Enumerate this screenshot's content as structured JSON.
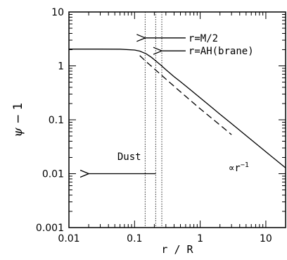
{
  "chart_data": {
    "type": "line",
    "title": "",
    "xlabel": "r / R",
    "ylabel_symbol": "ψ",
    "ylabel_rest": " − 1",
    "xscale": "log",
    "yscale": "log",
    "xlim": [
      0.01,
      20
    ],
    "ylim": [
      0.001,
      10
    ],
    "xticks": [
      0.01,
      0.1,
      1,
      10
    ],
    "xtick_labels": [
      "0.01",
      "0.1",
      "1",
      "10"
    ],
    "yticks": [
      0.001,
      0.01,
      0.1,
      1,
      10
    ],
    "ytick_labels": [
      "0.001",
      "0.01",
      "0.1",
      "1",
      "10"
    ],
    "series": [
      {
        "style": "solid",
        "x": [
          0.01,
          0.03,
          0.06,
          0.1,
          0.12,
          0.15,
          0.18,
          0.21,
          0.25,
          0.3,
          0.4,
          0.5,
          0.7,
          1,
          1.5,
          2,
          3,
          5,
          10,
          20
        ],
        "y": [
          2.05,
          2.05,
          2.04,
          1.97,
          1.88,
          1.68,
          1.45,
          1.24,
          1.04,
          0.85,
          0.63,
          0.51,
          0.365,
          0.255,
          0.17,
          0.127,
          0.085,
          0.051,
          0.0255,
          0.0128
        ]
      },
      {
        "style": "dashed",
        "x": [
          0.12,
          0.15,
          0.2,
          0.3,
          0.5,
          1,
          2,
          3
        ],
        "y": [
          1.55,
          1.2,
          0.88,
          0.57,
          0.33,
          0.16,
          0.08,
          0.053
        ]
      }
    ],
    "vlines": [
      0.145,
      0.21,
      0.26
    ],
    "annotations": [
      {
        "text": "r=M/2",
        "arrow_from": 0.6,
        "arrow_to": 0.145,
        "y": 3.3
      },
      {
        "text": "r=AH(brane)",
        "arrow_from": 0.6,
        "arrow_to": 0.26,
        "y": 1.9
      },
      {
        "text": "Dust",
        "arrow_from": 0.21,
        "arrow_to": 0.02,
        "y": 0.01,
        "label_y": 0.021
      }
    ],
    "slope_label": "∝r",
    "slope_label_exp": "−1"
  }
}
